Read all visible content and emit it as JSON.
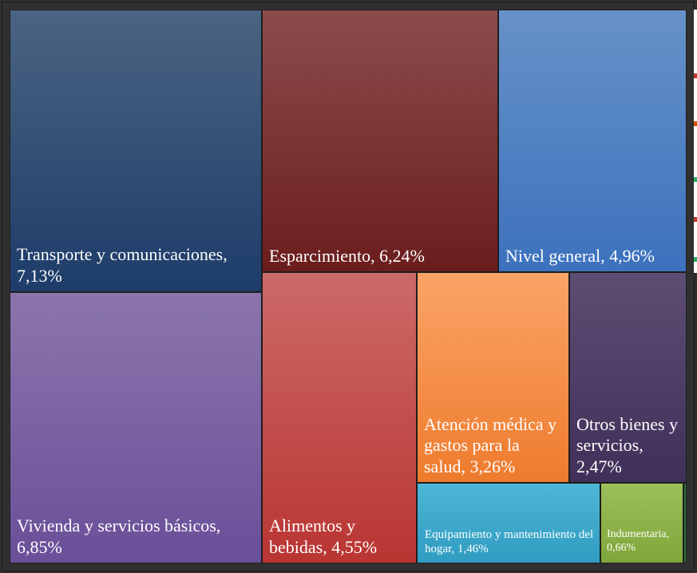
{
  "chart_data": {
    "type": "treemap",
    "tiles": [
      {
        "label": "Transporte y comunicaciones, 7,13%",
        "name": "Transporte y comunicaciones",
        "value": 7.13,
        "color_top": "#4a6482",
        "color_bottom": "#1d3c69"
      },
      {
        "label": "Vivienda y servicios básicos, 6,85%",
        "name": "Vivienda y servicios básicos",
        "value": 6.85,
        "color_top": "#8b75ac",
        "color_bottom": "#6a4f99"
      },
      {
        "label": "Esparcimiento, 6,24%",
        "name": "Esparcimiento",
        "value": 6.24,
        "color_top": "#8c4c4c",
        "color_bottom": "#6b1d1d"
      },
      {
        "label": "Nivel general, 4,96%",
        "name": "Nivel general",
        "value": 4.96,
        "color_top": "#6792c8",
        "color_bottom": "#3c71bd"
      },
      {
        "label": "Alimentos y bebidas, 4,55%",
        "name": "Alimentos y bebidas",
        "value": 4.55,
        "color_top": "#cc6a68",
        "color_bottom": "#b93532"
      },
      {
        "label": "Atención médica y gastos para la salud, 3,26%",
        "name": "Atención médica y gastos para la salud",
        "value": 3.26,
        "color_top": "#fba467",
        "color_bottom": "#ee7b2d"
      },
      {
        "label": "Otros bienes y servicios, 2,47%",
        "name": "Otros bienes y servicios",
        "value": 2.47,
        "color_top": "#5e4d72",
        "color_bottom": "#40305a"
      },
      {
        "label": "Equipamiento y mantenimiento del hogar, 1,46%",
        "name": "Equipamiento y mantenimiento del hogar",
        "value": 1.46,
        "color_top": "#4eb6d6",
        "color_bottom": "#2f9cc1"
      },
      {
        "label": "Indumentaria, 0,66%",
        "name": "Indumentaria",
        "value": 0.66,
        "color_top": "#9cbf5a",
        "color_bottom": "#7fa63a"
      }
    ]
  }
}
